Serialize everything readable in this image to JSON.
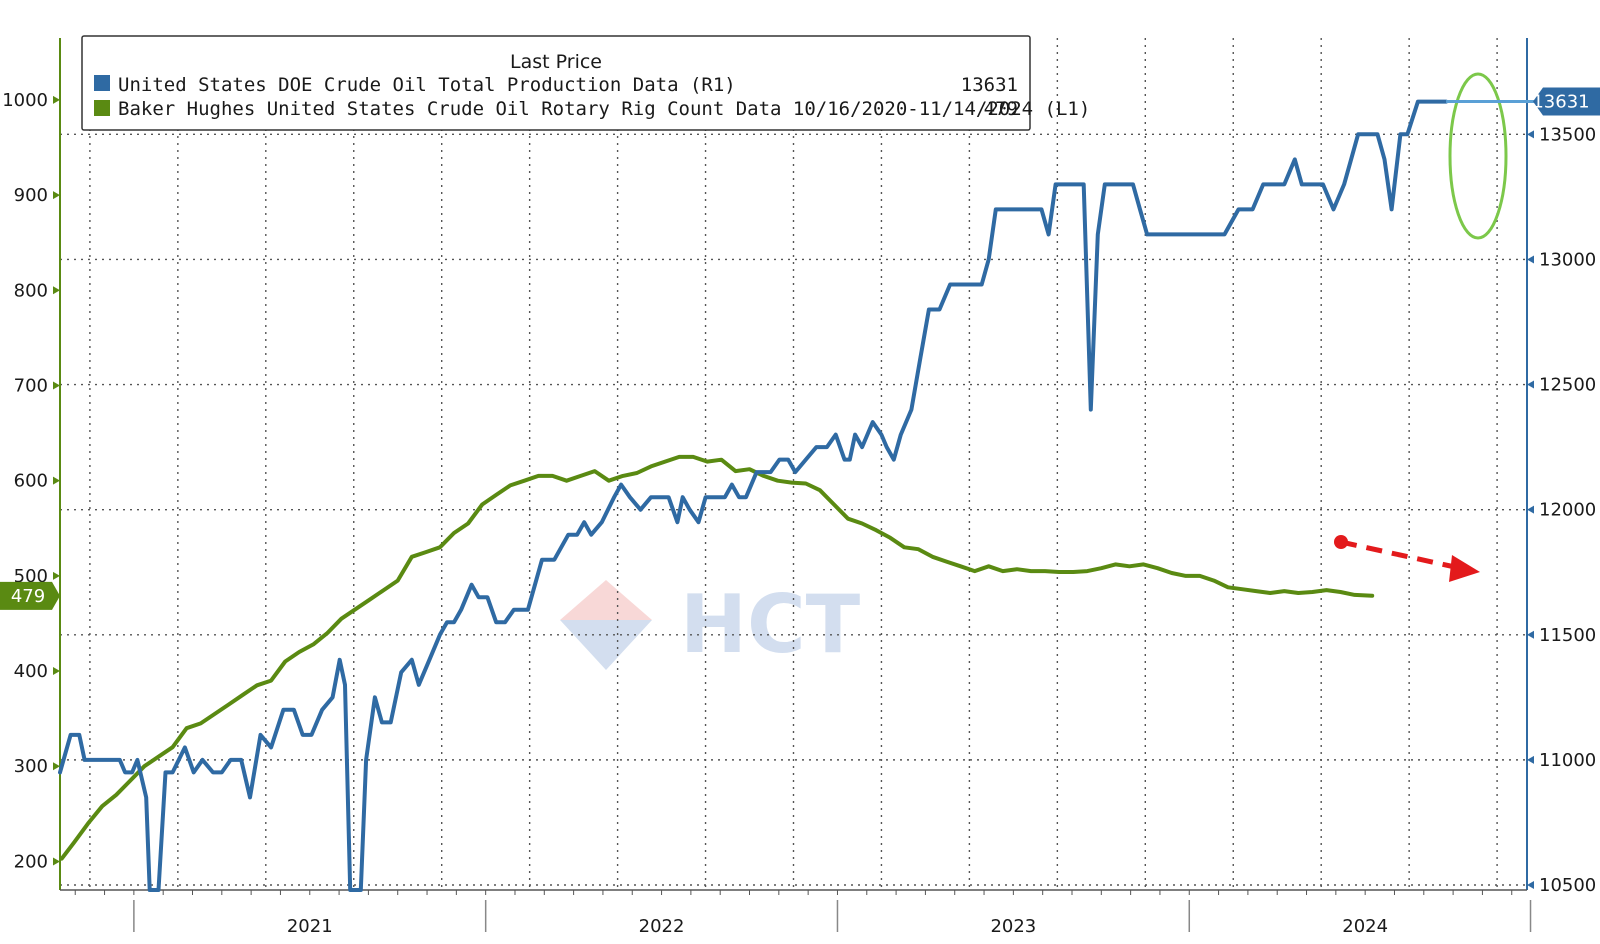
{
  "chart_data": {
    "type": "line",
    "legend": {
      "title": "Last Price",
      "placement": "top-left",
      "entries": [
        {
          "label": "United States DOE Crude Oil Total Production Data  (R1)",
          "value": "13631",
          "color": "#2f6aa3"
        },
        {
          "label": "Baker Hughes United States Crude Oil Rotary Rig Count Data 10/16/2020-11/14/2024   (L1)",
          "value": "479",
          "color": "#5a8a12"
        }
      ]
    },
    "x_axis": {
      "range": [
        2020.79,
        2024.96
      ],
      "year_labels": [
        {
          "label": "2021",
          "center": 2021.5
        },
        {
          "label": "2022",
          "center": 2022.5
        },
        {
          "label": "2023",
          "center": 2023.5
        },
        {
          "label": "2024",
          "center": 2024.5
        }
      ],
      "year_boundaries": [
        2021.0,
        2022.0,
        2023.0,
        2024.0,
        2024.97
      ]
    },
    "left_axis": {
      "range": [
        170,
        1065
      ],
      "ticks": [
        200,
        300,
        400,
        500,
        600,
        700,
        800,
        900,
        1000
      ],
      "tick_labels": [
        "200",
        "300",
        "400",
        "500",
        "600",
        "700",
        "800",
        "900",
        "1000"
      ],
      "last_value_tag": "479",
      "color": "#5a8a12"
    },
    "right_axis": {
      "range": [
        10480,
        13885
      ],
      "ticks": [
        10500,
        11000,
        11500,
        12000,
        12500,
        13000,
        13500
      ],
      "tick_labels": [
        "10500",
        "11000",
        "11500",
        "12000",
        "12500",
        "13000",
        "13500"
      ],
      "last_value_tag": "13631",
      "color": "#2f6aa3"
    },
    "grid": true,
    "series": [
      {
        "name": "Baker Hughes United States Crude Oil Rotary Rig Count",
        "axis": "left",
        "color": "#5a8a12",
        "points": [
          [
            2020.795,
            203
          ],
          [
            2020.83,
            220
          ],
          [
            2020.87,
            240
          ],
          [
            2020.91,
            258
          ],
          [
            2020.95,
            270
          ],
          [
            2020.99,
            285
          ],
          [
            2021.03,
            300
          ],
          [
            2021.07,
            310
          ],
          [
            2021.11,
            320
          ],
          [
            2021.15,
            340
          ],
          [
            2021.19,
            345
          ],
          [
            2021.23,
            355
          ],
          [
            2021.27,
            365
          ],
          [
            2021.31,
            375
          ],
          [
            2021.35,
            385
          ],
          [
            2021.39,
            390
          ],
          [
            2021.43,
            410
          ],
          [
            2021.47,
            420
          ],
          [
            2021.51,
            428
          ],
          [
            2021.55,
            440
          ],
          [
            2021.59,
            455
          ],
          [
            2021.63,
            465
          ],
          [
            2021.67,
            475
          ],
          [
            2021.71,
            485
          ],
          [
            2021.75,
            495
          ],
          [
            2021.79,
            520
          ],
          [
            2021.83,
            525
          ],
          [
            2021.87,
            530
          ],
          [
            2021.91,
            545
          ],
          [
            2021.95,
            555
          ],
          [
            2021.99,
            575
          ],
          [
            2022.03,
            585
          ],
          [
            2022.07,
            595
          ],
          [
            2022.11,
            600
          ],
          [
            2022.15,
            605
          ],
          [
            2022.19,
            605
          ],
          [
            2022.23,
            600
          ],
          [
            2022.27,
            605
          ],
          [
            2022.31,
            610
          ],
          [
            2022.35,
            600
          ],
          [
            2022.39,
            605
          ],
          [
            2022.43,
            608
          ],
          [
            2022.47,
            615
          ],
          [
            2022.51,
            620
          ],
          [
            2022.55,
            625
          ],
          [
            2022.59,
            625
          ],
          [
            2022.63,
            620
          ],
          [
            2022.67,
            622
          ],
          [
            2022.71,
            610
          ],
          [
            2022.75,
            612
          ],
          [
            2022.79,
            605
          ],
          [
            2022.83,
            600
          ],
          [
            2022.87,
            598
          ],
          [
            2022.91,
            597
          ],
          [
            2022.95,
            590
          ],
          [
            2022.99,
            575
          ],
          [
            2023.03,
            560
          ],
          [
            2023.07,
            555
          ],
          [
            2023.11,
            548
          ],
          [
            2023.15,
            540
          ],
          [
            2023.19,
            530
          ],
          [
            2023.23,
            528
          ],
          [
            2023.27,
            520
          ],
          [
            2023.31,
            515
          ],
          [
            2023.35,
            510
          ],
          [
            2023.39,
            505
          ],
          [
            2023.43,
            510
          ],
          [
            2023.47,
            505
          ],
          [
            2023.51,
            507
          ],
          [
            2023.55,
            505
          ],
          [
            2023.59,
            505
          ],
          [
            2023.63,
            504
          ],
          [
            2023.67,
            504
          ],
          [
            2023.71,
            505
          ],
          [
            2023.75,
            508
          ],
          [
            2023.79,
            512
          ],
          [
            2023.83,
            510
          ],
          [
            2023.87,
            512
          ],
          [
            2023.91,
            508
          ],
          [
            2023.95,
            503
          ],
          [
            2023.99,
            500
          ],
          [
            2024.03,
            500
          ],
          [
            2024.07,
            495
          ],
          [
            2024.11,
            488
          ],
          [
            2024.15,
            486
          ],
          [
            2024.19,
            484
          ],
          [
            2024.23,
            482
          ],
          [
            2024.27,
            484
          ],
          [
            2024.31,
            482
          ],
          [
            2024.35,
            483
          ],
          [
            2024.39,
            485
          ],
          [
            2024.43,
            483
          ],
          [
            2024.47,
            480
          ],
          [
            2024.52,
            479
          ]
        ]
      },
      {
        "name": "United States DOE Crude Oil Total Production",
        "axis": "right",
        "color": "#2f6aa3",
        "points": [
          [
            2020.79,
            10950
          ],
          [
            2020.82,
            11100
          ],
          [
            2020.845,
            11100
          ],
          [
            2020.86,
            11000
          ],
          [
            2020.9,
            11000
          ],
          [
            2020.94,
            11000
          ],
          [
            2020.96,
            11000
          ],
          [
            2020.975,
            10950
          ],
          [
            2020.995,
            10950
          ],
          [
            2021.01,
            11000
          ],
          [
            2021.035,
            10850
          ],
          [
            2021.045,
            10400
          ],
          [
            2021.07,
            10400
          ],
          [
            2021.09,
            10950
          ],
          [
            2021.11,
            10950
          ],
          [
            2021.145,
            11050
          ],
          [
            2021.17,
            10950
          ],
          [
            2021.195,
            11000
          ],
          [
            2021.225,
            10950
          ],
          [
            2021.25,
            10950
          ],
          [
            2021.275,
            11000
          ],
          [
            2021.305,
            11000
          ],
          [
            2021.33,
            10850
          ],
          [
            2021.36,
            11100
          ],
          [
            2021.39,
            11050
          ],
          [
            2021.425,
            11200
          ],
          [
            2021.455,
            11200
          ],
          [
            2021.48,
            11100
          ],
          [
            2021.505,
            11100
          ],
          [
            2021.535,
            11200
          ],
          [
            2021.565,
            11250
          ],
          [
            2021.585,
            11400
          ],
          [
            2021.6,
            11300
          ],
          [
            2021.615,
            10400
          ],
          [
            2021.645,
            10400
          ],
          [
            2021.66,
            11000
          ],
          [
            2021.685,
            11250
          ],
          [
            2021.705,
            11150
          ],
          [
            2021.73,
            11150
          ],
          [
            2021.76,
            11350
          ],
          [
            2021.79,
            11400
          ],
          [
            2021.81,
            11300
          ],
          [
            2021.84,
            11400
          ],
          [
            2021.87,
            11500
          ],
          [
            2021.89,
            11550
          ],
          [
            2021.91,
            11550
          ],
          [
            2021.93,
            11600
          ],
          [
            2021.96,
            11700
          ],
          [
            2021.98,
            11650
          ],
          [
            2022.005,
            11650
          ],
          [
            2022.03,
            11550
          ],
          [
            2022.055,
            11550
          ],
          [
            2022.08,
            11600
          ],
          [
            2022.1,
            11600
          ],
          [
            2022.12,
            11600
          ],
          [
            2022.16,
            11800
          ],
          [
            2022.195,
            11800
          ],
          [
            2022.215,
            11850
          ],
          [
            2022.235,
            11900
          ],
          [
            2022.26,
            11900
          ],
          [
            2022.28,
            11950
          ],
          [
            2022.3,
            11900
          ],
          [
            2022.33,
            11950
          ],
          [
            2022.365,
            12050
          ],
          [
            2022.385,
            12100
          ],
          [
            2022.41,
            12050
          ],
          [
            2022.44,
            12000
          ],
          [
            2022.47,
            12050
          ],
          [
            2022.5,
            12050
          ],
          [
            2022.52,
            12050
          ],
          [
            2022.545,
            11950
          ],
          [
            2022.56,
            12050
          ],
          [
            2022.58,
            12000
          ],
          [
            2022.605,
            11950
          ],
          [
            2022.625,
            12050
          ],
          [
            2022.655,
            12050
          ],
          [
            2022.68,
            12050
          ],
          [
            2022.7,
            12100
          ],
          [
            2022.72,
            12050
          ],
          [
            2022.74,
            12050
          ],
          [
            2022.77,
            12150
          ],
          [
            2022.8,
            12150
          ],
          [
            2022.81,
            12150
          ],
          [
            2022.835,
            12200
          ],
          [
            2022.86,
            12200
          ],
          [
            2022.88,
            12150
          ],
          [
            2022.91,
            12200
          ],
          [
            2022.94,
            12250
          ],
          [
            2022.97,
            12250
          ],
          [
            2022.995,
            12300
          ],
          [
            2023.02,
            12200
          ],
          [
            2023.035,
            12200
          ],
          [
            2023.05,
            12300
          ],
          [
            2023.07,
            12250
          ],
          [
            2023.085,
            12300
          ],
          [
            2023.1,
            12350
          ],
          [
            2023.125,
            12300
          ],
          [
            2023.14,
            12250
          ],
          [
            2023.16,
            12200
          ],
          [
            2023.18,
            12300
          ],
          [
            2023.21,
            12400
          ],
          [
            2023.235,
            12600
          ],
          [
            2023.26,
            12800
          ],
          [
            2023.29,
            12800
          ],
          [
            2023.32,
            12900
          ],
          [
            2023.35,
            12900
          ],
          [
            2023.38,
            12900
          ],
          [
            2023.41,
            12900
          ],
          [
            2023.43,
            13000
          ],
          [
            2023.45,
            13200
          ],
          [
            2023.47,
            13200
          ],
          [
            2023.5,
            13200
          ],
          [
            2023.53,
            13200
          ],
          [
            2023.56,
            13200
          ],
          [
            2023.58,
            13200
          ],
          [
            2023.6,
            13100
          ],
          [
            2023.62,
            13300
          ],
          [
            2023.64,
            13300
          ],
          [
            2023.66,
            13300
          ],
          [
            2023.68,
            13300
          ],
          [
            2023.7,
            13300
          ],
          [
            2023.72,
            12400
          ],
          [
            2023.74,
            13100
          ],
          [
            2023.76,
            13300
          ],
          [
            2023.79,
            13300
          ],
          [
            2023.82,
            13300
          ],
          [
            2023.84,
            13300
          ],
          [
            2023.86,
            13200
          ],
          [
            2023.88,
            13100
          ],
          [
            2023.92,
            13100
          ],
          [
            2023.96,
            13100
          ],
          [
            2024.0,
            13100
          ],
          [
            2024.04,
            13100
          ],
          [
            2024.06,
            13100
          ],
          [
            2024.1,
            13100
          ],
          [
            2024.14,
            13200
          ],
          [
            2024.18,
            13200
          ],
          [
            2024.21,
            13300
          ],
          [
            2024.24,
            13300
          ],
          [
            2024.27,
            13300
          ],
          [
            2024.3,
            13400
          ],
          [
            2024.32,
            13300
          ],
          [
            2024.35,
            13300
          ],
          [
            2024.38,
            13300
          ],
          [
            2024.41,
            13200
          ],
          [
            2024.44,
            13300
          ],
          [
            2024.46,
            13400
          ],
          [
            2024.48,
            13500
          ],
          [
            2024.51,
            13500
          ],
          [
            2024.535,
            13500
          ],
          [
            2024.555,
            13400
          ],
          [
            2024.575,
            13200
          ],
          [
            2024.6,
            13500
          ],
          [
            2024.62,
            13500
          ],
          [
            2024.65,
            13631
          ],
          [
            2024.69,
            13631
          ],
          [
            2024.73,
            13631
          ]
        ]
      }
    ]
  }
}
